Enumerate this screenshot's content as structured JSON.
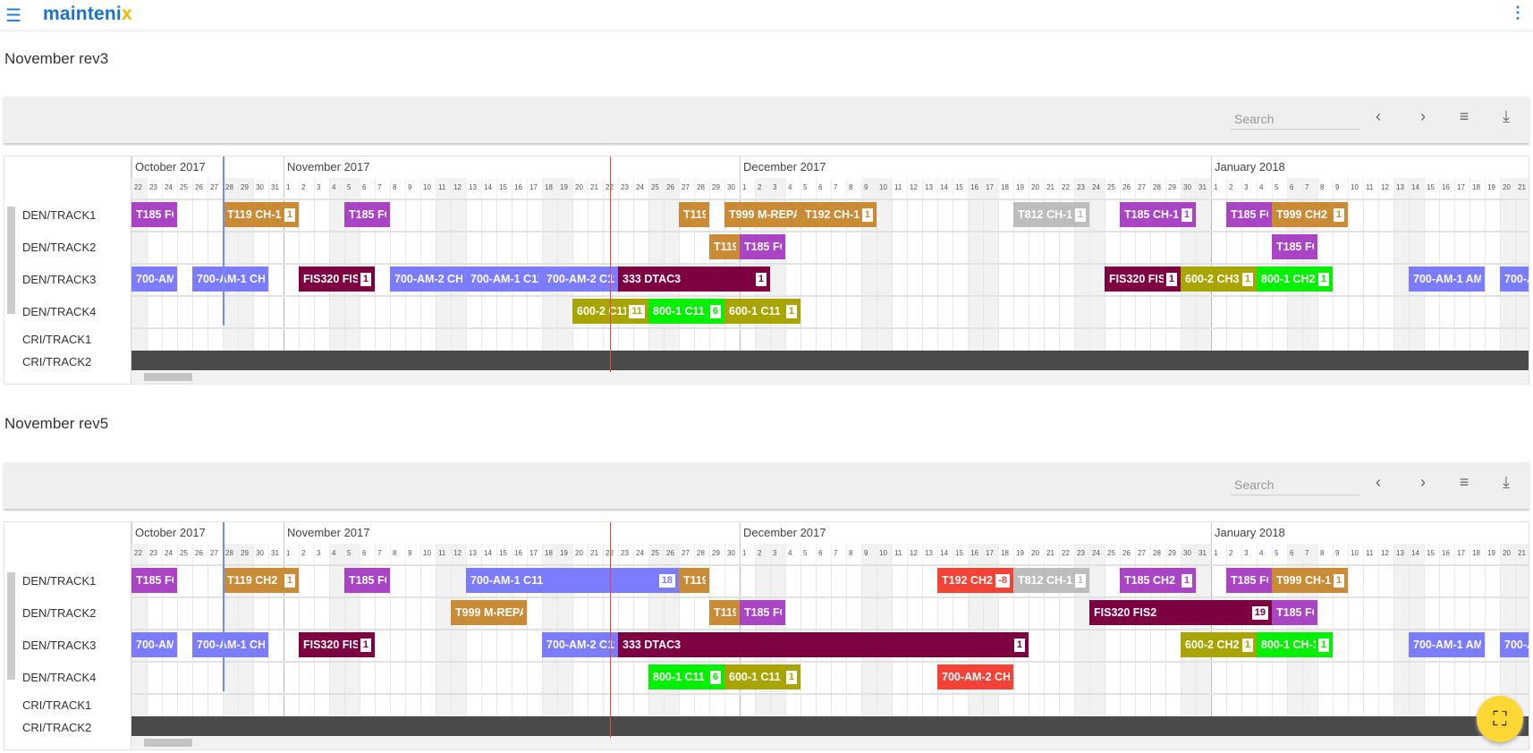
{
  "app": {
    "logo": "mainteni",
    "logo_x": "x"
  },
  "toolbar": {
    "search_placeholder": "Search",
    "prev": "‹",
    "next": "›",
    "filter": "≡",
    "download": "⤓"
  },
  "colors": {
    "purple": "#a945c4",
    "orange": "#c98b35",
    "blue": "#7b7cff",
    "maroon": "#7d0040",
    "olive": "#a8a400",
    "green": "#00f000",
    "gray": "#bdbdbd",
    "red": "#f44336",
    "today_line": "#f44336",
    "marker_line": "#6c8cff"
  },
  "timeline": {
    "start": "2017-10-22",
    "months": [
      {
        "label": "October 2017",
        "first": 22,
        "last": 31
      },
      {
        "label": "November 2017",
        "first": 1,
        "last": 30
      },
      {
        "label": "December 2017",
        "first": 1,
        "last": 31
      },
      {
        "label": "January 2018",
        "first": 1,
        "last": 22
      }
    ],
    "today": "2017-11-22",
    "marker": "2017-10-28"
  },
  "tracks": [
    "DEN/TRACK1",
    "DEN/TRACK2",
    "DEN/TRACK3",
    "DEN/TRACK4",
    "CRI/TRACK1",
    "CRI/TRACK2"
  ],
  "charts": [
    {
      "title": "November rev3",
      "bars": [
        {
          "track": 0,
          "label": "T185 FC",
          "color": "purple",
          "start": "2017-10-22",
          "end": "2017-10-24"
        },
        {
          "track": 0,
          "label": "T119 CH-1",
          "badge": "1",
          "color": "orange",
          "start": "2017-10-28",
          "end": "2017-11-01"
        },
        {
          "track": 0,
          "label": "T185 FC",
          "color": "purple",
          "start": "2017-11-05",
          "end": "2017-11-07"
        },
        {
          "track": 0,
          "label": "T119",
          "color": "orange",
          "start": "2017-11-27",
          "end": "2017-11-28"
        },
        {
          "track": 0,
          "label": "T999 M-REPAI",
          "color": "orange",
          "start": "2017-11-30",
          "end": "2017-12-04"
        },
        {
          "track": 0,
          "label": "T192 CH-1",
          "badge": "1",
          "color": "orange",
          "start": "2017-12-05",
          "end": "2017-12-09"
        },
        {
          "track": 0,
          "label": "T812 CH-1",
          "badge": "1",
          "color": "gray",
          "start": "2017-12-19",
          "end": "2017-12-23"
        },
        {
          "track": 0,
          "label": "T185 CH-1",
          "badge": "1",
          "color": "purple",
          "start": "2017-12-26",
          "end": "2017-12-30"
        },
        {
          "track": 0,
          "label": "T185 FC",
          "color": "purple",
          "start": "2018-01-02",
          "end": "2018-01-04"
        },
        {
          "track": 0,
          "label": "T999 CH2",
          "badge": "1",
          "color": "orange",
          "start": "2018-01-05",
          "end": "2018-01-09"
        },
        {
          "track": 1,
          "label": "T119",
          "color": "orange",
          "start": "2017-11-29",
          "end": "2017-11-30"
        },
        {
          "track": 1,
          "label": "T185 FC",
          "color": "purple",
          "start": "2017-12-01",
          "end": "2017-12-03"
        },
        {
          "track": 1,
          "label": "T185 FC",
          "color": "purple",
          "start": "2018-01-05",
          "end": "2018-01-07"
        },
        {
          "track": 2,
          "label": "700-AM",
          "color": "blue",
          "start": "2017-10-22",
          "end": "2017-10-24"
        },
        {
          "track": 2,
          "label": "700-AM-1 CH",
          "color": "blue",
          "start": "2017-10-26",
          "end": "2017-10-30"
        },
        {
          "track": 2,
          "label": "FIS320 FIS6",
          "badge": "1",
          "color": "maroon",
          "start": "2017-11-02",
          "end": "2017-11-06"
        },
        {
          "track": 2,
          "label": "700-AM-2 CH",
          "color": "blue",
          "start": "2017-11-08",
          "end": "2017-11-12"
        },
        {
          "track": 2,
          "label": "700-AM-1 C11",
          "color": "blue",
          "start": "2017-11-13",
          "end": "2017-11-17"
        },
        {
          "track": 2,
          "label": "700-AM-2 C11",
          "color": "blue",
          "start": "2017-11-18",
          "end": "2017-11-22"
        },
        {
          "track": 2,
          "label": "333 DTAC3",
          "badge": "1",
          "color": "maroon",
          "start": "2017-11-23",
          "end": "2017-12-02"
        },
        {
          "track": 2,
          "label": "FIS320 FIS2",
          "badge": "1",
          "color": "maroon",
          "start": "2017-12-25",
          "end": "2017-12-29"
        },
        {
          "track": 2,
          "label": "600-2 CH3",
          "badge": "1",
          "color": "olive",
          "start": "2017-12-30",
          "end": "2018-01-03"
        },
        {
          "track": 2,
          "label": "800-1 CH2",
          "badge": "1",
          "color": "green",
          "start": "2018-01-04",
          "end": "2018-01-08"
        },
        {
          "track": 2,
          "label": "700-AM-1 AM",
          "color": "blue",
          "start": "2018-01-14",
          "end": "2018-01-18"
        },
        {
          "track": 2,
          "label": "700-A",
          "color": "blue",
          "start": "2018-01-20",
          "end": "2018-01-24"
        },
        {
          "track": 3,
          "label": "600-2 C11",
          "badge": "11",
          "color": "olive",
          "start": "2017-11-20",
          "end": "2017-11-24"
        },
        {
          "track": 3,
          "label": "800-1 C11",
          "badge": "6",
          "color": "green",
          "start": "2017-11-25",
          "end": "2017-11-29"
        },
        {
          "track": 3,
          "label": "600-1 C11",
          "badge": "1",
          "color": "olive",
          "start": "2017-11-30",
          "end": "2017-12-04"
        }
      ]
    },
    {
      "title": "November rev5",
      "bars": [
        {
          "track": 0,
          "label": "T185 FC",
          "color": "purple",
          "start": "2017-10-22",
          "end": "2017-10-24"
        },
        {
          "track": 0,
          "label": "T119 CH2",
          "badge": "1",
          "color": "orange",
          "start": "2017-10-28",
          "end": "2017-11-01"
        },
        {
          "track": 0,
          "label": "T185 FC",
          "color": "purple",
          "start": "2017-11-05",
          "end": "2017-11-07"
        },
        {
          "track": 0,
          "label": "700-AM-1 C11",
          "badge": "18",
          "color": "blue",
          "start": "2017-11-13",
          "end": "2017-11-26"
        },
        {
          "track": 0,
          "label": "T119",
          "color": "orange",
          "start": "2017-11-27",
          "end": "2017-11-28"
        },
        {
          "track": 0,
          "label": "T192 CH2",
          "badge": "-8",
          "color": "red",
          "start": "2017-12-14",
          "end": "2017-12-18"
        },
        {
          "track": 0,
          "label": "T812 CH-1",
          "badge": "1",
          "color": "gray",
          "start": "2017-12-19",
          "end": "2017-12-23"
        },
        {
          "track": 0,
          "label": "T185 CH2",
          "badge": "1",
          "color": "purple",
          "start": "2017-12-26",
          "end": "2017-12-30"
        },
        {
          "track": 0,
          "label": "T185 FC",
          "color": "purple",
          "start": "2018-01-02",
          "end": "2018-01-04"
        },
        {
          "track": 0,
          "label": "T999 CH-1",
          "badge": "1",
          "color": "orange",
          "start": "2018-01-05",
          "end": "2018-01-09"
        },
        {
          "track": 1,
          "label": "T999 M-REPAI",
          "color": "orange",
          "start": "2017-11-12",
          "end": "2017-11-16"
        },
        {
          "track": 1,
          "label": "T119",
          "color": "orange",
          "start": "2017-11-29",
          "end": "2017-11-30"
        },
        {
          "track": 1,
          "label": "T185 FC",
          "color": "purple",
          "start": "2017-12-01",
          "end": "2017-12-03"
        },
        {
          "track": 1,
          "label": "FIS320 FIS2",
          "badge": "19",
          "color": "maroon",
          "start": "2017-12-24",
          "end": "2018-01-04"
        },
        {
          "track": 1,
          "label": "T185 FC",
          "color": "purple",
          "start": "2018-01-05",
          "end": "2018-01-07"
        },
        {
          "track": 2,
          "label": "700-AM",
          "color": "blue",
          "start": "2017-10-22",
          "end": "2017-10-24"
        },
        {
          "track": 2,
          "label": "700-AM-1 CH",
          "color": "blue",
          "start": "2017-10-26",
          "end": "2017-10-30"
        },
        {
          "track": 2,
          "label": "FIS320 FIS6",
          "badge": "1",
          "color": "maroon",
          "start": "2017-11-02",
          "end": "2017-11-06"
        },
        {
          "track": 2,
          "label": "700-AM-2 C11",
          "color": "blue",
          "start": "2017-11-18",
          "end": "2017-11-22"
        },
        {
          "track": 2,
          "label": "333 DTAC3",
          "badge": "1",
          "color": "maroon",
          "start": "2017-11-23",
          "end": "2017-12-19"
        },
        {
          "track": 2,
          "label": "600-2 CH2",
          "badge": "1",
          "color": "olive",
          "start": "2017-12-30",
          "end": "2018-01-03"
        },
        {
          "track": 2,
          "label": "800-1 CH-1",
          "badge": "1",
          "color": "green",
          "start": "2018-01-04",
          "end": "2018-01-08"
        },
        {
          "track": 2,
          "label": "700-AM-1 AM",
          "color": "blue",
          "start": "2018-01-14",
          "end": "2018-01-18"
        },
        {
          "track": 2,
          "label": "700-A",
          "color": "blue",
          "start": "2018-01-20",
          "end": "2018-01-24"
        },
        {
          "track": 3,
          "label": "800-1 C11",
          "badge": "6",
          "color": "green",
          "start": "2017-11-25",
          "end": "2017-11-29"
        },
        {
          "track": 3,
          "label": "600-1 C11",
          "badge": "1",
          "color": "olive",
          "start": "2017-11-30",
          "end": "2017-12-04"
        },
        {
          "track": 3,
          "label": "700-AM-2 CH",
          "color": "red",
          "start": "2017-12-14",
          "end": "2017-12-18"
        }
      ]
    }
  ],
  "fab": {
    "icon": "fullscreen-icon",
    "glyph": "⛶"
  }
}
